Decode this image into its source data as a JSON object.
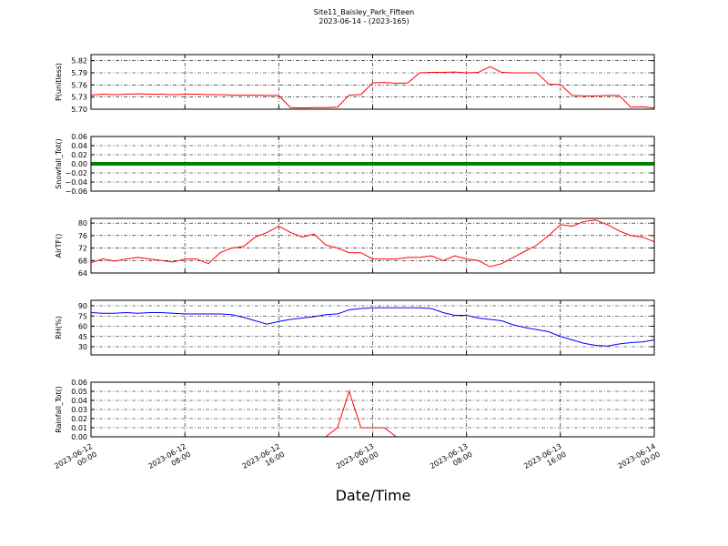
{
  "chart_data": [
    {
      "type": "line",
      "title": "Site11_Baisley_Park_Fifteen",
      "subtitle": "2023-06-14 - (2023-165)",
      "ylabel": "P(unitless)",
      "x": [
        "2023-06-12 00:00",
        "2023-06-12 01:00",
        "2023-06-12 02:00",
        "2023-06-12 03:00",
        "2023-06-12 04:00",
        "2023-06-12 05:00",
        "2023-06-12 06:00",
        "2023-06-12 07:00",
        "2023-06-12 08:00",
        "2023-06-12 09:00",
        "2023-06-12 10:00",
        "2023-06-12 11:00",
        "2023-06-12 12:00",
        "2023-06-12 13:00",
        "2023-06-12 14:00",
        "2023-06-12 15:00",
        "2023-06-12 16:00",
        "2023-06-12 17:00",
        "2023-06-12 18:00",
        "2023-06-12 19:00",
        "2023-06-12 20:00",
        "2023-06-12 21:00",
        "2023-06-12 22:00",
        "2023-06-12 23:00",
        "2023-06-13 00:00",
        "2023-06-13 01:00",
        "2023-06-13 02:00",
        "2023-06-13 03:00",
        "2023-06-13 04:00",
        "2023-06-13 05:00",
        "2023-06-13 06:00",
        "2023-06-13 07:00",
        "2023-06-13 08:00",
        "2023-06-13 09:00",
        "2023-06-13 10:00",
        "2023-06-13 11:00",
        "2023-06-13 12:00",
        "2023-06-13 13:00",
        "2023-06-13 14:00",
        "2023-06-13 15:00",
        "2023-06-13 16:00",
        "2023-06-13 17:00",
        "2023-06-13 18:00",
        "2023-06-13 19:00",
        "2023-06-13 20:00",
        "2023-06-13 21:00",
        "2023-06-13 22:00",
        "2023-06-13 23:00",
        "2023-06-14 00:00"
      ],
      "series": [
        {
          "color": "#ff0000",
          "values": [
            5.735,
            5.737,
            5.736,
            5.737,
            5.738,
            5.737,
            5.737,
            5.736,
            5.737,
            5.737,
            5.736,
            5.736,
            5.735,
            5.735,
            5.735,
            5.734,
            5.734,
            5.704,
            5.703,
            5.704,
            5.704,
            5.705,
            5.735,
            5.736,
            5.765,
            5.766,
            5.764,
            5.765,
            5.79,
            5.791,
            5.791,
            5.792,
            5.79,
            5.791,
            5.805,
            5.791,
            5.79,
            5.79,
            5.79,
            5.762,
            5.761,
            5.734,
            5.733,
            5.733,
            5.734,
            5.734,
            5.705,
            5.706,
            5.703
          ]
        }
      ],
      "ylim": [
        5.7,
        5.835
      ],
      "yticks": [
        {
          "value": 5.7,
          "label": "5.70"
        },
        5.73,
        5.76,
        5.79,
        5.82
      ],
      "grid": true
    },
    {
      "type": "line",
      "ylabel": "Snowfall_Tot()",
      "x": [
        "2023-06-12 00:00",
        "2023-06-12 01:00",
        "2023-06-12 02:00",
        "2023-06-12 03:00",
        "2023-06-12 04:00",
        "2023-06-12 05:00",
        "2023-06-12 06:00",
        "2023-06-12 07:00",
        "2023-06-12 08:00",
        "2023-06-12 09:00",
        "2023-06-12 10:00",
        "2023-06-12 11:00",
        "2023-06-12 12:00",
        "2023-06-12 13:00",
        "2023-06-12 14:00",
        "2023-06-12 15:00",
        "2023-06-12 16:00",
        "2023-06-12 17:00",
        "2023-06-12 18:00",
        "2023-06-12 19:00",
        "2023-06-12 20:00",
        "2023-06-12 21:00",
        "2023-06-12 22:00",
        "2023-06-12 23:00",
        "2023-06-13 00:00",
        "2023-06-13 01:00",
        "2023-06-13 02:00",
        "2023-06-13 03:00",
        "2023-06-13 04:00",
        "2023-06-13 05:00",
        "2023-06-13 06:00",
        "2023-06-13 07:00",
        "2023-06-13 08:00",
        "2023-06-13 09:00",
        "2023-06-13 10:00",
        "2023-06-13 11:00",
        "2023-06-13 12:00",
        "2023-06-13 13:00",
        "2023-06-13 14:00",
        "2023-06-13 15:00",
        "2023-06-13 16:00",
        "2023-06-13 17:00",
        "2023-06-13 18:00",
        "2023-06-13 19:00",
        "2023-06-13 20:00",
        "2023-06-13 21:00",
        "2023-06-13 22:00",
        "2023-06-13 23:00",
        "2023-06-14 00:00"
      ],
      "series": [
        {
          "color": "#008000",
          "values": [
            0,
            0,
            0,
            0,
            0,
            0,
            0,
            0,
            0,
            0,
            0,
            0,
            0,
            0,
            0,
            0,
            0,
            0,
            0,
            0,
            0,
            0,
            0,
            0,
            0,
            0,
            0,
            0,
            0,
            0,
            0,
            0,
            0,
            0,
            0,
            0,
            0,
            0,
            0,
            0,
            0,
            0,
            0,
            0,
            0,
            0,
            0,
            0,
            0
          ]
        }
      ],
      "ylim": [
        -0.06,
        0.06
      ],
      "yticks": [
        {
          "value": -0.06,
          "label": "−0.06"
        },
        {
          "value": -0.04,
          "label": "−0.04"
        },
        {
          "value": -0.02,
          "label": "−0.02"
        },
        {
          "value": 0,
          "label": "0.00"
        },
        0.02,
        0.04,
        0.06
      ],
      "grid": true
    },
    {
      "type": "line",
      "ylabel": "AirTF()",
      "x": [
        "2023-06-12 00:00",
        "2023-06-12 01:00",
        "2023-06-12 02:00",
        "2023-06-12 03:00",
        "2023-06-12 04:00",
        "2023-06-12 05:00",
        "2023-06-12 06:00",
        "2023-06-12 07:00",
        "2023-06-12 08:00",
        "2023-06-12 09:00",
        "2023-06-12 10:00",
        "2023-06-12 11:00",
        "2023-06-12 12:00",
        "2023-06-12 13:00",
        "2023-06-12 14:00",
        "2023-06-12 15:00",
        "2023-06-12 16:00",
        "2023-06-12 17:00",
        "2023-06-12 18:00",
        "2023-06-12 19:00",
        "2023-06-12 20:00",
        "2023-06-12 21:00",
        "2023-06-12 22:00",
        "2023-06-12 23:00",
        "2023-06-13 00:00",
        "2023-06-13 01:00",
        "2023-06-13 02:00",
        "2023-06-13 03:00",
        "2023-06-13 04:00",
        "2023-06-13 05:00",
        "2023-06-13 06:00",
        "2023-06-13 07:00",
        "2023-06-13 08:00",
        "2023-06-13 09:00",
        "2023-06-13 10:00",
        "2023-06-13 11:00",
        "2023-06-13 12:00",
        "2023-06-13 13:00",
        "2023-06-13 14:00",
        "2023-06-13 15:00",
        "2023-06-13 16:00",
        "2023-06-13 17:00",
        "2023-06-13 18:00",
        "2023-06-13 19:00",
        "2023-06-13 20:00",
        "2023-06-13 21:00",
        "2023-06-13 22:00",
        "2023-06-13 23:00",
        "2023-06-14 00:00"
      ],
      "series": [
        {
          "color": "#ff0000",
          "values": [
            67.3,
            68.5,
            67.8,
            68.5,
            69,
            68.5,
            68,
            67.5,
            68.5,
            68.5,
            67,
            70.5,
            72,
            72.5,
            75.5,
            77,
            79,
            77,
            75.5,
            76.5,
            73,
            72,
            70.5,
            70.5,
            68.5,
            68.5,
            68.5,
            69,
            69,
            69.5,
            68,
            69.5,
            68.5,
            68,
            66,
            67,
            69,
            71,
            73,
            76,
            79.5,
            79,
            80.5,
            81,
            79.5,
            77.5,
            76,
            75.5,
            74
          ]
        }
      ],
      "ylim": [
        64,
        81.5
      ],
      "yticks": [
        64,
        68,
        72,
        76,
        80
      ],
      "grid": true
    },
    {
      "type": "line",
      "ylabel": "RH(%)",
      "x": [
        "2023-06-12 00:00",
        "2023-06-12 01:00",
        "2023-06-12 02:00",
        "2023-06-12 03:00",
        "2023-06-12 04:00",
        "2023-06-12 05:00",
        "2023-06-12 06:00",
        "2023-06-12 07:00",
        "2023-06-12 08:00",
        "2023-06-12 09:00",
        "2023-06-12 10:00",
        "2023-06-12 11:00",
        "2023-06-12 12:00",
        "2023-06-12 13:00",
        "2023-06-12 14:00",
        "2023-06-12 15:00",
        "2023-06-12 16:00",
        "2023-06-12 17:00",
        "2023-06-12 18:00",
        "2023-06-12 19:00",
        "2023-06-12 20:00",
        "2023-06-12 21:00",
        "2023-06-12 22:00",
        "2023-06-12 23:00",
        "2023-06-13 00:00",
        "2023-06-13 01:00",
        "2023-06-13 02:00",
        "2023-06-13 03:00",
        "2023-06-13 04:00",
        "2023-06-13 05:00",
        "2023-06-13 06:00",
        "2023-06-13 07:00",
        "2023-06-13 08:00",
        "2023-06-13 09:00",
        "2023-06-13 10:00",
        "2023-06-13 11:00",
        "2023-06-13 12:00",
        "2023-06-13 13:00",
        "2023-06-13 14:00",
        "2023-06-13 15:00",
        "2023-06-13 16:00",
        "2023-06-13 17:00",
        "2023-06-13 18:00",
        "2023-06-13 19:00",
        "2023-06-13 20:00",
        "2023-06-13 21:00",
        "2023-06-13 22:00",
        "2023-06-13 23:00",
        "2023-06-14 00:00"
      ],
      "series": [
        {
          "color": "#0000ff",
          "values": [
            80,
            79,
            79,
            80,
            79,
            80,
            80,
            79,
            78,
            78,
            78,
            78,
            77,
            73,
            68,
            63,
            67,
            70,
            72,
            74,
            77,
            78,
            84,
            86,
            87,
            87,
            87,
            87,
            87,
            86,
            80,
            76,
            76,
            72,
            70,
            68,
            62,
            58,
            55,
            52,
            45,
            40,
            35,
            32,
            31,
            34,
            36,
            37,
            40
          ]
        }
      ],
      "ylim": [
        18,
        98
      ],
      "yticks": [
        30,
        45,
        60,
        75,
        90
      ],
      "grid": true
    },
    {
      "type": "line",
      "ylabel": "Rainfall_Tot()",
      "xlabel": "Date/Time",
      "x": [
        "2023-06-12 00:00",
        "2023-06-12 01:00",
        "2023-06-12 02:00",
        "2023-06-12 03:00",
        "2023-06-12 04:00",
        "2023-06-12 05:00",
        "2023-06-12 06:00",
        "2023-06-12 07:00",
        "2023-06-12 08:00",
        "2023-06-12 09:00",
        "2023-06-12 10:00",
        "2023-06-12 11:00",
        "2023-06-12 12:00",
        "2023-06-12 13:00",
        "2023-06-12 14:00",
        "2023-06-12 15:00",
        "2023-06-12 16:00",
        "2023-06-12 17:00",
        "2023-06-12 18:00",
        "2023-06-12 19:00",
        "2023-06-12 20:00",
        "2023-06-12 21:00",
        "2023-06-12 22:00",
        "2023-06-12 23:00",
        "2023-06-13 00:00",
        "2023-06-13 01:00",
        "2023-06-13 02:00",
        "2023-06-13 03:00",
        "2023-06-13 04:00",
        "2023-06-13 05:00",
        "2023-06-13 06:00",
        "2023-06-13 07:00",
        "2023-06-13 08:00",
        "2023-06-13 09:00",
        "2023-06-13 10:00",
        "2023-06-13 11:00",
        "2023-06-13 12:00",
        "2023-06-13 13:00",
        "2023-06-13 14:00",
        "2023-06-13 15:00",
        "2023-06-13 16:00",
        "2023-06-13 17:00",
        "2023-06-13 18:00",
        "2023-06-13 19:00",
        "2023-06-13 20:00",
        "2023-06-13 21:00",
        "2023-06-13 22:00",
        "2023-06-13 23:00",
        "2023-06-14 00:00"
      ],
      "series": [
        {
          "color": "#ff0000",
          "values": [
            0,
            0,
            0,
            0,
            0,
            0,
            0,
            0,
            0,
            0,
            0,
            0,
            0,
            0,
            0,
            0,
            0,
            0,
            0,
            0,
            0,
            0.01,
            0.05,
            0.01,
            0.01,
            0.01,
            0,
            0,
            0,
            0,
            0,
            0,
            0,
            0,
            0,
            0,
            0,
            0,
            0,
            0,
            0,
            0,
            0,
            0,
            0,
            0,
            0,
            0,
            0
          ]
        }
      ],
      "ylim": [
        0,
        0.06
      ],
      "yticks": [
        {
          "value": 0,
          "label": "0.00"
        },
        {
          "value": 0.01,
          "label": "0.01"
        },
        {
          "value": 0.02,
          "label": "0.02"
        },
        {
          "value": 0.03,
          "label": "0.03"
        },
        {
          "value": 0.04,
          "label": "0.04"
        },
        {
          "value": 0.05,
          "label": "0.05"
        },
        {
          "value": 0.06,
          "label": "0.06"
        }
      ],
      "grid": true,
      "xlim": [
        "2023-06-12 00:00",
        "2023-06-14 00:00"
      ],
      "xticks": [
        "2023-06-12 00:00",
        "2023-06-12 08:00",
        "2023-06-12 16:00",
        "2023-06-13 00:00",
        "2023-06-13 08:00",
        "2023-06-13 16:00",
        "2023-06-14 00:00"
      ]
    }
  ]
}
